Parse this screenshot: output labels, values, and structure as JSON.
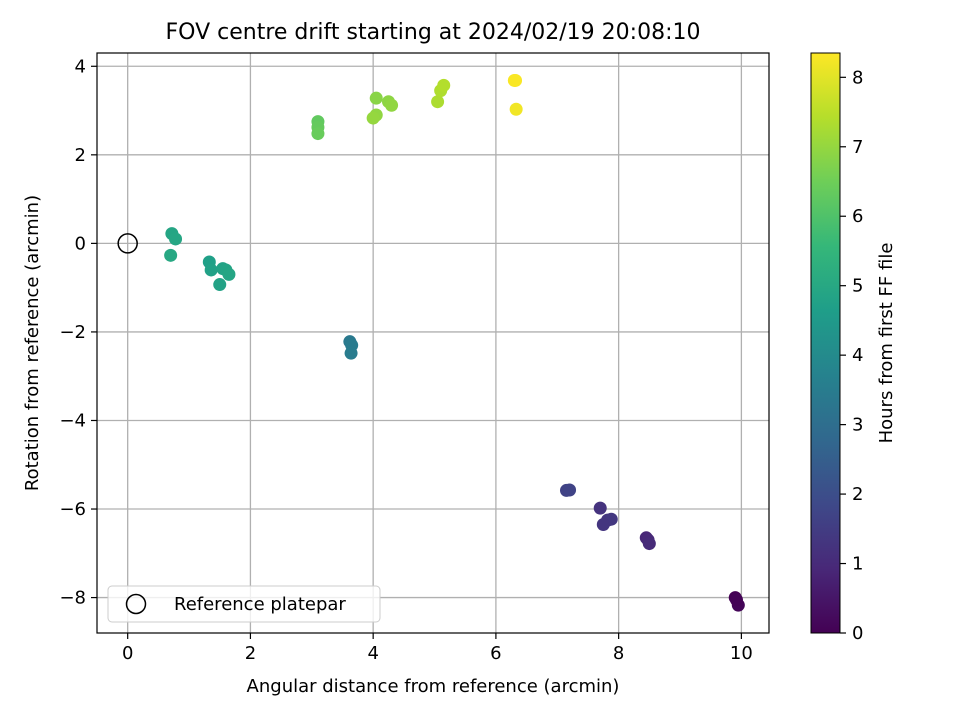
{
  "chart_data": {
    "type": "scatter",
    "title": "FOV centre drift starting at 2024/02/19 20:08:10",
    "xlabel": "Angular distance from reference (arcmin)",
    "ylabel": "Rotation from reference (arcmin)",
    "xlim": [
      -0.5,
      10.45
    ],
    "ylim": [
      -8.8,
      4.3
    ],
    "xticks": [
      0,
      2,
      4,
      6,
      8,
      10
    ],
    "xtick_labels": [
      "0",
      "2",
      "4",
      "6",
      "8",
      "10"
    ],
    "yticks": [
      -8,
      -6,
      -4,
      -2,
      0,
      2,
      4
    ],
    "ytick_labels": [
      "−8",
      "−6",
      "−4",
      "−2",
      "0",
      "2",
      "4"
    ],
    "grid": true,
    "legend": {
      "placement": "lower-left",
      "entries": [
        "Reference platepar"
      ]
    },
    "reference_point": {
      "x": 0,
      "y": 0
    },
    "colorbar": {
      "label": "Hours from first FF file",
      "range": [
        0,
        8.35
      ],
      "ticks": [
        0,
        1,
        2,
        3,
        4,
        5,
        6,
        7,
        8
      ],
      "tick_labels": [
        "0",
        "1",
        "2",
        "3",
        "4",
        "5",
        "6",
        "7",
        "8"
      ],
      "colormap": "viridis"
    },
    "points": [
      {
        "x": 9.9,
        "y": -8.0,
        "hours": 0.0
      },
      {
        "x": 9.95,
        "y": -8.17,
        "hours": 0.1
      },
      {
        "x": 9.92,
        "y": -8.05,
        "hours": 0.05
      },
      {
        "x": 8.45,
        "y": -6.65,
        "hours": 0.9
      },
      {
        "x": 8.48,
        "y": -6.7,
        "hours": 0.95
      },
      {
        "x": 8.5,
        "y": -6.78,
        "hours": 1.0
      },
      {
        "x": 7.7,
        "y": -5.98,
        "hours": 1.25
      },
      {
        "x": 7.82,
        "y": -6.25,
        "hours": 1.3
      },
      {
        "x": 7.88,
        "y": -6.23,
        "hours": 1.35
      },
      {
        "x": 7.75,
        "y": -6.35,
        "hours": 1.3
      },
      {
        "x": 7.15,
        "y": -5.58,
        "hours": 1.65
      },
      {
        "x": 7.2,
        "y": -5.57,
        "hours": 1.7
      },
      {
        "x": 3.62,
        "y": -2.22,
        "hours": 3.4
      },
      {
        "x": 3.65,
        "y": -2.3,
        "hours": 3.45
      },
      {
        "x": 3.64,
        "y": -2.48,
        "hours": 3.5
      },
      {
        "x": 0.72,
        "y": 0.22,
        "hours": 4.9
      },
      {
        "x": 0.78,
        "y": 0.1,
        "hours": 4.95
      },
      {
        "x": 0.7,
        "y": -0.27,
        "hours": 5.0
      },
      {
        "x": 1.33,
        "y": -0.42,
        "hours": 4.7
      },
      {
        "x": 1.36,
        "y": -0.6,
        "hours": 4.75
      },
      {
        "x": 1.55,
        "y": -0.57,
        "hours": 4.8
      },
      {
        "x": 1.6,
        "y": -0.6,
        "hours": 4.85
      },
      {
        "x": 1.65,
        "y": -0.7,
        "hours": 4.9
      },
      {
        "x": 1.5,
        "y": -0.93,
        "hours": 4.8
      },
      {
        "x": 3.1,
        "y": 2.75,
        "hours": 6.3
      },
      {
        "x": 3.1,
        "y": 2.62,
        "hours": 6.35
      },
      {
        "x": 3.1,
        "y": 2.48,
        "hours": 6.4
      },
      {
        "x": 4.05,
        "y": 3.28,
        "hours": 6.85
      },
      {
        "x": 4.25,
        "y": 3.2,
        "hours": 6.9
      },
      {
        "x": 4.3,
        "y": 3.12,
        "hours": 6.95
      },
      {
        "x": 4.05,
        "y": 2.9,
        "hours": 6.95
      },
      {
        "x": 4.0,
        "y": 2.83,
        "hours": 7.0
      },
      {
        "x": 5.05,
        "y": 3.2,
        "hours": 7.3
      },
      {
        "x": 5.1,
        "y": 3.45,
        "hours": 7.35
      },
      {
        "x": 5.15,
        "y": 3.57,
        "hours": 7.4
      },
      {
        "x": 6.3,
        "y": 3.68,
        "hours": 8.3
      },
      {
        "x": 6.32,
        "y": 3.68,
        "hours": 8.3
      },
      {
        "x": 6.33,
        "y": 3.03,
        "hours": 8.2
      }
    ]
  }
}
